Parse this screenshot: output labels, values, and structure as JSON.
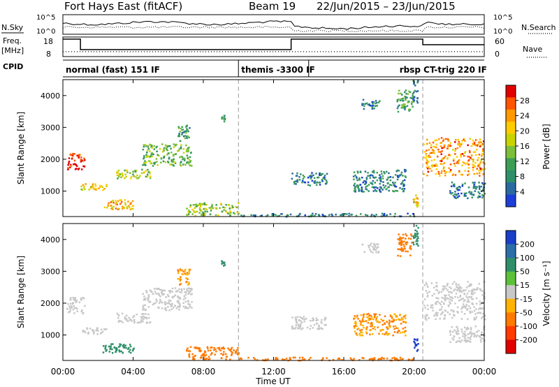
{
  "header": {
    "station": "Fort Hays East (fitACF)",
    "beam": "Beam 19",
    "date_range": "22/Jun/2015 – 23/Jun/2015"
  },
  "panels": {
    "nsky": {
      "left_label": "N.Sky",
      "right_label": "N.Search",
      "left_ticks": [
        "10^5",
        "10^0"
      ],
      "right_ticks": [
        "10^5",
        "10^0"
      ]
    },
    "freq": {
      "left_label_1": "Freq.",
      "left_label_2": "[MHz]",
      "right_label": "Nave",
      "left_ticks": [
        "18",
        "8"
      ],
      "right_ticks": [
        "60",
        "0"
      ]
    },
    "cpid": {
      "label": "CPID",
      "modes": [
        {
          "label": "normal (fast) 151 IF",
          "start_h": 0,
          "end_h": 10
        },
        {
          "label": "themis -3300 IF",
          "start_h": 10,
          "end_h": 14
        },
        {
          "label": "rbsp CT-trig 220 IF",
          "start_h": 14,
          "end_h": 24
        }
      ]
    }
  },
  "colorbars": {
    "power": {
      "label": "Power [dB]",
      "ticks": [
        "28",
        "24",
        "20",
        "16",
        "12",
        "8",
        "4"
      ],
      "colors": [
        "#e00000",
        "#ff5500",
        "#ff9900",
        "#ffcc00",
        "#c8d400",
        "#7cbf3a",
        "#3e9e55",
        "#2f8f6a",
        "#2a6aa0",
        "#1d3fd8"
      ]
    },
    "velocity": {
      "label": "Velocity [m s⁻¹]",
      "ticks": [
        "200",
        "100",
        "50",
        "15",
        "-15",
        "-50",
        "-100",
        "-200"
      ],
      "colors": [
        "#1a3ec8",
        "#2e6ea8",
        "#2e8f6a",
        "#5cc13a",
        "#c8c8c8",
        "#ffb300",
        "#ff7a00",
        "#ff3b00",
        "#e00000"
      ]
    }
  },
  "chart_data": [
    {
      "type": "heatmap",
      "name": "power",
      "xlabel": "Time UT",
      "ylabel": "Slant Range [km]",
      "xlim": [
        0,
        24
      ],
      "ylim": [
        200,
        4500
      ],
      "x_ticks": [
        "00:00",
        "04:00",
        "08:00",
        "12:00",
        "16:00",
        "20:00",
        "00:00"
      ],
      "y_ticks": [
        1000,
        2000,
        3000,
        4000
      ],
      "scatter_regions": [
        {
          "t0": 0.2,
          "t1": 1.2,
          "r0": 1700,
          "r1": 2200,
          "level": 28
        },
        {
          "t0": 1.0,
          "t1": 2.5,
          "r0": 1050,
          "r1": 1250,
          "level": 18
        },
        {
          "t0": 2.2,
          "t1": 4.0,
          "r0": 450,
          "r1": 750,
          "level": 20
        },
        {
          "t0": 3.0,
          "t1": 5.0,
          "r0": 1400,
          "r1": 1700,
          "level": 15
        },
        {
          "t0": 4.5,
          "t1": 7.3,
          "r0": 1800,
          "r1": 2500,
          "level": 12
        },
        {
          "t0": 6.5,
          "t1": 7.2,
          "r0": 2600,
          "r1": 3100,
          "level": 8
        },
        {
          "t0": 7.0,
          "t1": 10.0,
          "r0": 250,
          "r1": 650,
          "level": 14
        },
        {
          "t0": 9.0,
          "t1": 9.2,
          "r0": 3200,
          "r1": 3400,
          "level": 8
        },
        {
          "t0": 10.0,
          "t1": 20.0,
          "r0": 220,
          "r1": 320,
          "level": 6
        },
        {
          "t0": 13.0,
          "t1": 15.0,
          "r0": 1200,
          "r1": 1600,
          "level": 6
        },
        {
          "t0": 16.5,
          "t1": 19.5,
          "r0": 1000,
          "r1": 1700,
          "level": 6
        },
        {
          "t0": 17.0,
          "t1": 18.0,
          "r0": 3600,
          "r1": 3900,
          "level": 6
        },
        {
          "t0": 19.0,
          "t1": 19.9,
          "r0": 3500,
          "r1": 4200,
          "level": 10
        },
        {
          "t0": 19.9,
          "t1": 20.2,
          "r0": 3800,
          "r1": 4500,
          "level": 6
        },
        {
          "t0": 19.9,
          "t1": 20.2,
          "r0": 500,
          "r1": 900,
          "level": 18
        },
        {
          "t0": 20.5,
          "t1": 24.0,
          "r0": 1500,
          "r1": 2700,
          "level": 22
        },
        {
          "t0": 22.0,
          "t1": 24.0,
          "r0": 800,
          "r1": 1300,
          "level": 6
        }
      ]
    },
    {
      "type": "heatmap",
      "name": "velocity",
      "xlabel": "Time UT",
      "ylabel": "Slant Range [km]",
      "xlim": [
        0,
        24
      ],
      "ylim": [
        200,
        4500
      ],
      "x_ticks": [
        "00:00",
        "04:00",
        "08:00",
        "12:00",
        "16:00",
        "20:00",
        "00:00"
      ],
      "y_ticks": [
        1000,
        2000,
        3000,
        4000
      ],
      "scatter_regions": [
        {
          "t0": 0.2,
          "t1": 1.2,
          "r0": 1700,
          "r1": 2200,
          "level": 0
        },
        {
          "t0": 1.0,
          "t1": 2.5,
          "r0": 1050,
          "r1": 1250,
          "level": -5
        },
        {
          "t0": 2.2,
          "t1": 4.0,
          "r0": 450,
          "r1": 750,
          "level": 40
        },
        {
          "t0": 3.0,
          "t1": 5.0,
          "r0": 1400,
          "r1": 1700,
          "level": 0
        },
        {
          "t0": 4.5,
          "t1": 7.3,
          "r0": 1800,
          "r1": 2500,
          "level": 0
        },
        {
          "t0": 6.5,
          "t1": 7.2,
          "r0": 2600,
          "r1": 3100,
          "level": -30
        },
        {
          "t0": 7.0,
          "t1": 10.0,
          "r0": 250,
          "r1": 650,
          "level": -60
        },
        {
          "t0": 9.0,
          "t1": 9.2,
          "r0": 3200,
          "r1": 3400,
          "level": 40
        },
        {
          "t0": 10.0,
          "t1": 20.0,
          "r0": 220,
          "r1": 320,
          "level": -40
        },
        {
          "t0": 13.0,
          "t1": 15.0,
          "r0": 1200,
          "r1": 1600,
          "level": 0
        },
        {
          "t0": 16.5,
          "t1": 19.5,
          "r0": 1000,
          "r1": 1700,
          "level": -30
        },
        {
          "t0": 17.0,
          "t1": 18.0,
          "r0": 3600,
          "r1": 3900,
          "level": 0
        },
        {
          "t0": 19.0,
          "t1": 19.9,
          "r0": 3500,
          "r1": 4200,
          "level": -60
        },
        {
          "t0": 19.9,
          "t1": 20.2,
          "r0": 3800,
          "r1": 4500,
          "level": 40
        },
        {
          "t0": 19.9,
          "t1": 20.2,
          "r0": 500,
          "r1": 900,
          "level": 250
        },
        {
          "t0": 20.5,
          "t1": 24.0,
          "r0": 1500,
          "r1": 2700,
          "level": 0
        },
        {
          "t0": 22.0,
          "t1": 24.0,
          "r0": 800,
          "r1": 1300,
          "level": 0
        }
      ]
    }
  ]
}
